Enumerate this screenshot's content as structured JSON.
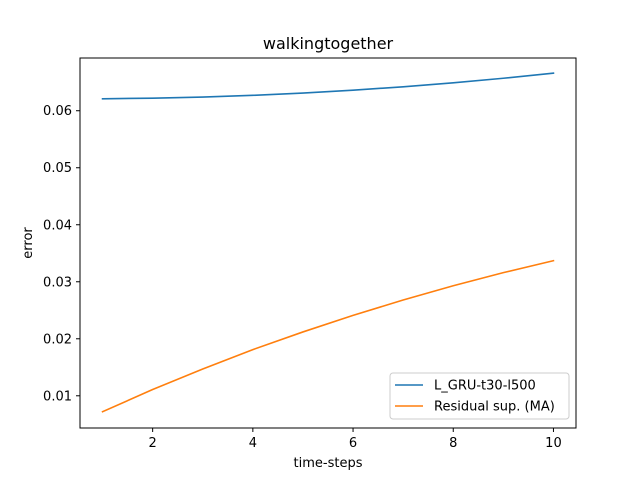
{
  "chart_data": {
    "type": "line",
    "title": "walkingtogether",
    "xlabel": "time-steps",
    "ylabel": "error",
    "xlim": [
      0.55,
      10.45
    ],
    "ylim": [
      0.00435,
      0.06925
    ],
    "xticks": [
      2,
      4,
      6,
      8,
      10
    ],
    "yticks": [
      0.01,
      0.02,
      0.03,
      0.04,
      0.05,
      0.06
    ],
    "xtick_labels": [
      "2",
      "4",
      "6",
      "8",
      "10"
    ],
    "ytick_labels": [
      "0.01",
      "0.02",
      "0.03",
      "0.04",
      "0.05",
      "0.06"
    ],
    "grid": false,
    "legend_position": "lower-right",
    "x": [
      1,
      2,
      3,
      4,
      5,
      6,
      7,
      8,
      9,
      10
    ],
    "series": [
      {
        "name": "L_GRU-t30-l500",
        "color": "#1f77b4",
        "values": [
          0.0621,
          0.0622,
          0.0624,
          0.0627,
          0.0631,
          0.0636,
          0.0642,
          0.0649,
          0.0657,
          0.0666
        ]
      },
      {
        "name": "Residual sup. (MA)",
        "color": "#ff7f0e",
        "values": [
          0.0072,
          0.0111,
          0.0147,
          0.0181,
          0.0212,
          0.0241,
          0.0268,
          0.0293,
          0.0316,
          0.0337
        ]
      }
    ]
  }
}
